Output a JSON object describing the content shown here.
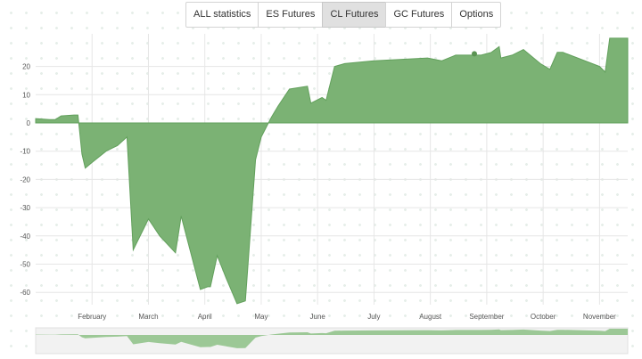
{
  "tabs": [
    {
      "label": "ALL statistics",
      "active": false
    },
    {
      "label": "ES Futures",
      "active": false
    },
    {
      "label": "CL Futures",
      "active": true
    },
    {
      "label": "GC Futures",
      "active": false
    },
    {
      "label": "Options",
      "active": false
    }
  ],
  "colors": {
    "area_fill": "#7bb274",
    "area_stroke": "#62a05c",
    "navigator_fill": "#9cc896",
    "grid": "#e6e6e6",
    "marker": "#5b9353"
  },
  "chart_data": {
    "type": "area",
    "title": "",
    "xlabel": "",
    "ylabel": "",
    "ylim": [
      -65,
      30
    ],
    "y_ticks": [
      20,
      10,
      0,
      -10,
      -20,
      -30,
      -40,
      -50,
      -60
    ],
    "x_tick_labels": [
      "February",
      "March",
      "April",
      "May",
      "June",
      "July",
      "August",
      "September",
      "October",
      "November"
    ],
    "x_range": [
      1.0,
      11.5
    ],
    "x_unit": "month",
    "series": [
      {
        "x": [
          1.0,
          1.25,
          1.35,
          1.45,
          1.68,
          1.75,
          1.78,
          1.82,
          1.88,
          2.0,
          2.25,
          2.45,
          2.62,
          2.73,
          3.0,
          3.2,
          3.48,
          3.58,
          3.92,
          4.05,
          4.1,
          4.22,
          4.38,
          4.57,
          4.72,
          4.9,
          5.0,
          5.18,
          5.3,
          5.5,
          5.82,
          5.88,
          6.08,
          6.15,
          6.3,
          6.48,
          7.0,
          7.95,
          8.2,
          8.45,
          8.9,
          9.08,
          9.22,
          9.25,
          9.45,
          9.65,
          9.95,
          10.12,
          10.25,
          10.35,
          11.0,
          11.1,
          11.18,
          11.5
        ],
        "values": [
          1.5,
          1.2,
          1.2,
          2.5,
          2.8,
          2.8,
          -3,
          -11,
          -16,
          -14,
          -10,
          -8,
          -5,
          -45,
          -34,
          -40,
          -46,
          -33,
          -59,
          -58,
          -58,
          -47,
          -55,
          -64,
          -63,
          -13,
          -5,
          2,
          6,
          12,
          13,
          7,
          9,
          8,
          20,
          21,
          22,
          23,
          22,
          24,
          24,
          25,
          27,
          23,
          24,
          26,
          21,
          19,
          25,
          25,
          20,
          18,
          30,
          30
        ]
      }
    ],
    "marker": {
      "x": 8.78,
      "y": 24.5
    },
    "grid": true,
    "legend": "none"
  }
}
